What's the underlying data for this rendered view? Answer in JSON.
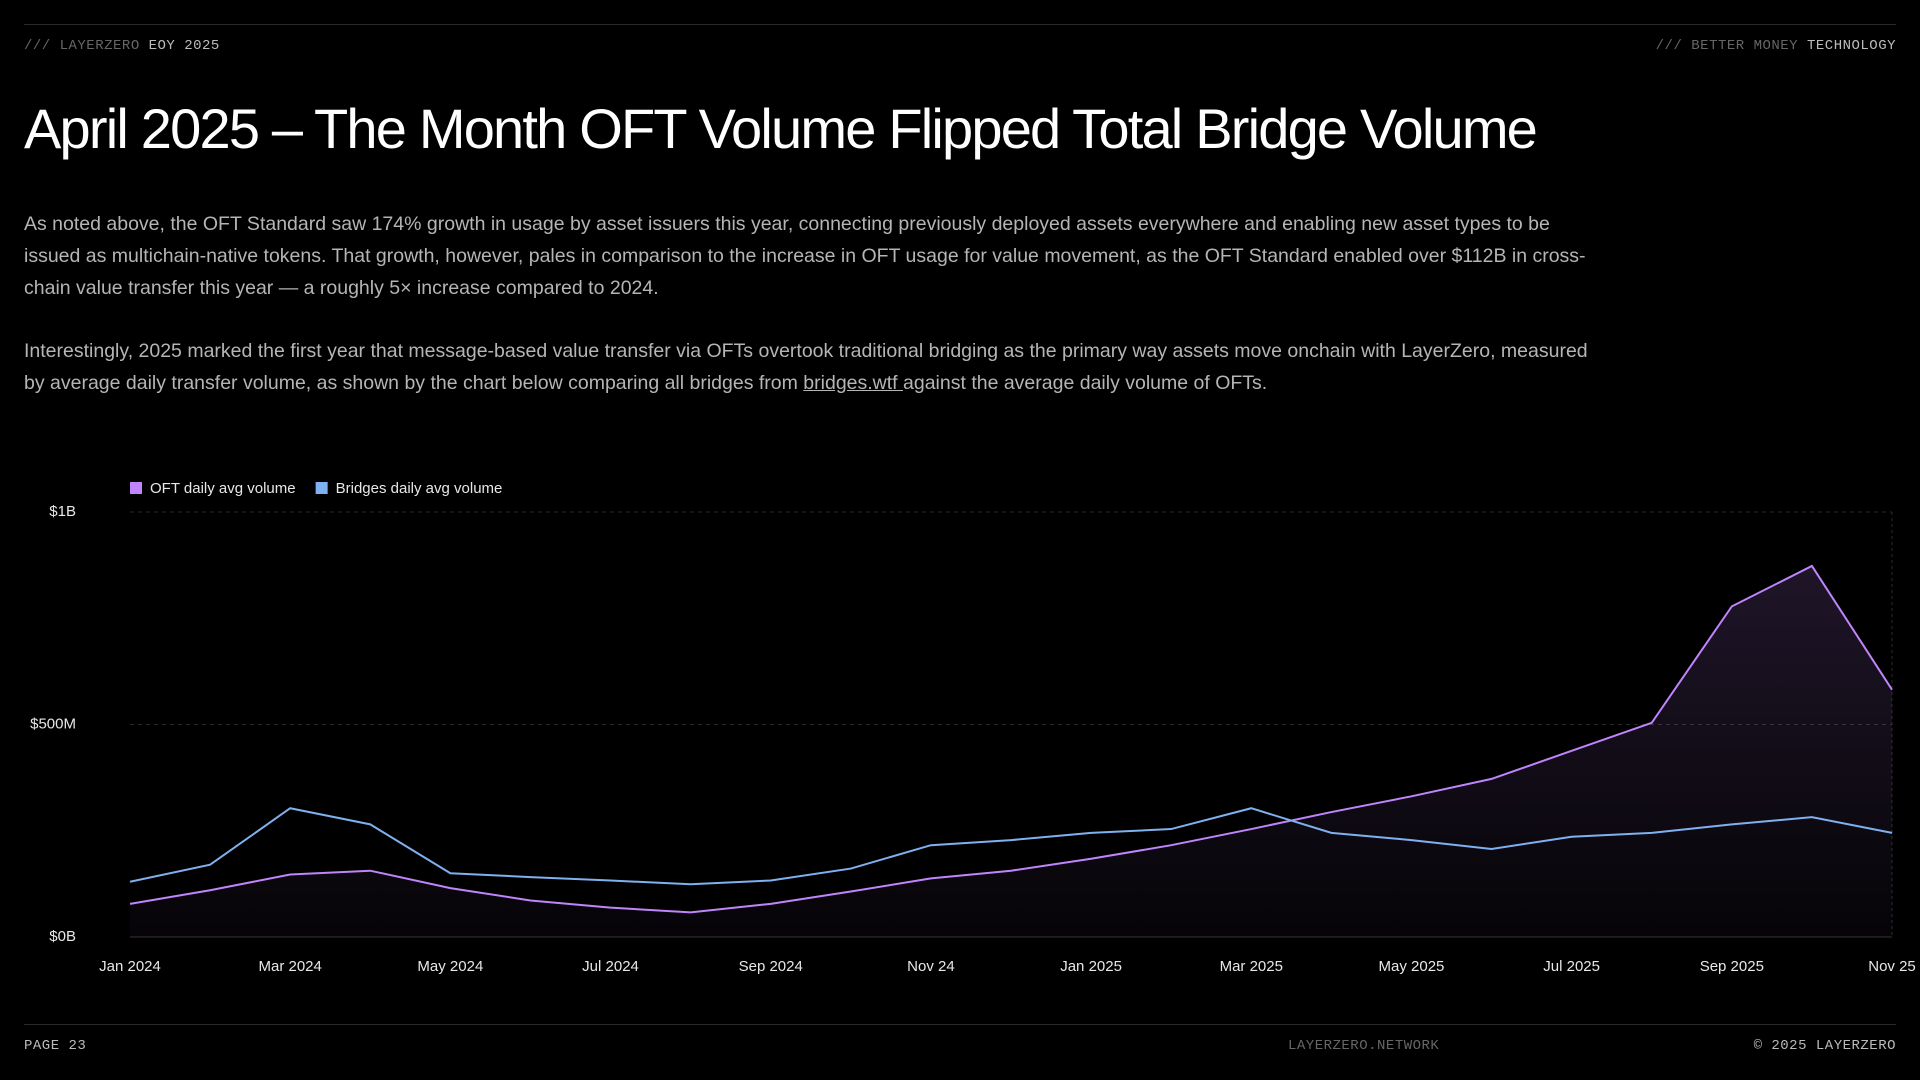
{
  "header": {
    "left_muted": "/// LAYERZERO",
    "left": "EOY 2025",
    "right_muted": "/// BETTER MONEY",
    "right": "TECHNOLOGY"
  },
  "title": "April 2025 – The Month OFT Volume Flipped Total Bridge Volume",
  "paragraphs": [
    "As noted above, the OFT Standard saw 174% growth in usage by asset issuers this year, connecting previously deployed assets everywhere and enabling new asset types to be issued as multichain-native tokens. That growth, however, pales in comparison to the increase in OFT usage for value movement, as the OFT Standard enabled over $112B in cross-chain value transfer this year — a roughly 5× increase compared to 2024.",
    {
      "before": "Interestingly, 2025 marked the first year that message-based value transfer via OFTs overtook traditional bridging as the primary way assets move onchain with LayerZero, measured by average daily transfer volume, as shown by the chart below comparing all bridges from ",
      "link": "bridges.wtf ",
      "after": "against the average daily volume of OFTs."
    }
  ],
  "chart_data": {
    "type": "line",
    "categories": [
      "Jan 2024",
      null,
      "Mar 2024",
      null,
      "May 2024",
      null,
      "Jul 2024",
      null,
      "Sep 2024",
      null,
      "Nov 24",
      null,
      "Jan 2025",
      null,
      "Mar 2025",
      null,
      "May 2025",
      null,
      "Jul 2025",
      null,
      "Sep 2025",
      null,
      "Nov 25"
    ],
    "series": [
      {
        "name": "OFT daily avg volume",
        "color": "#c084fc",
        "values": [
          78,
          110,
          147,
          156,
          115,
          86,
          69,
          58,
          78,
          107,
          138,
          156,
          184,
          216,
          254,
          294,
          331,
          372,
          438,
          504,
          778,
          873,
          582
        ]
      },
      {
        "name": "Bridges daily avg volume",
        "color": "#7fb0f0",
        "values": [
          130,
          170,
          303,
          265,
          150,
          141,
          133,
          124,
          133,
          161,
          216,
          228,
          245,
          254,
          303,
          245,
          228,
          207,
          236,
          245,
          265,
          282,
          245
        ]
      }
    ],
    "ylim": [
      0,
      1000
    ],
    "yticks": [
      {
        "value": 0,
        "label": "$0B"
      },
      {
        "value": 500,
        "label": "$500M"
      },
      {
        "value": 1000,
        "label": "$1B"
      }
    ],
    "grid": true
  },
  "footer": {
    "left": "PAGE 23",
    "center": "LAYERZERO.NETWORK",
    "right": "© 2025 LAYERZERO"
  }
}
